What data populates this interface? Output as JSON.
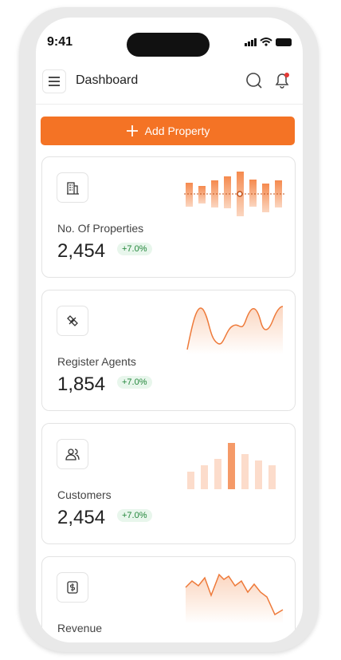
{
  "status_bar": {
    "time": "9:41"
  },
  "header": {
    "title": "Dashboard"
  },
  "action_button": {
    "label": "Add Property"
  },
  "cards": [
    {
      "label": "No. Of Properties",
      "value": "2,454",
      "change": "+7.0%"
    },
    {
      "label": "Register Agents",
      "value": "1,854",
      "change": "+7.0%"
    },
    {
      "label": "Customers",
      "value": "2,454",
      "change": "+7.0%"
    },
    {
      "label": "Revenue"
    }
  ]
}
